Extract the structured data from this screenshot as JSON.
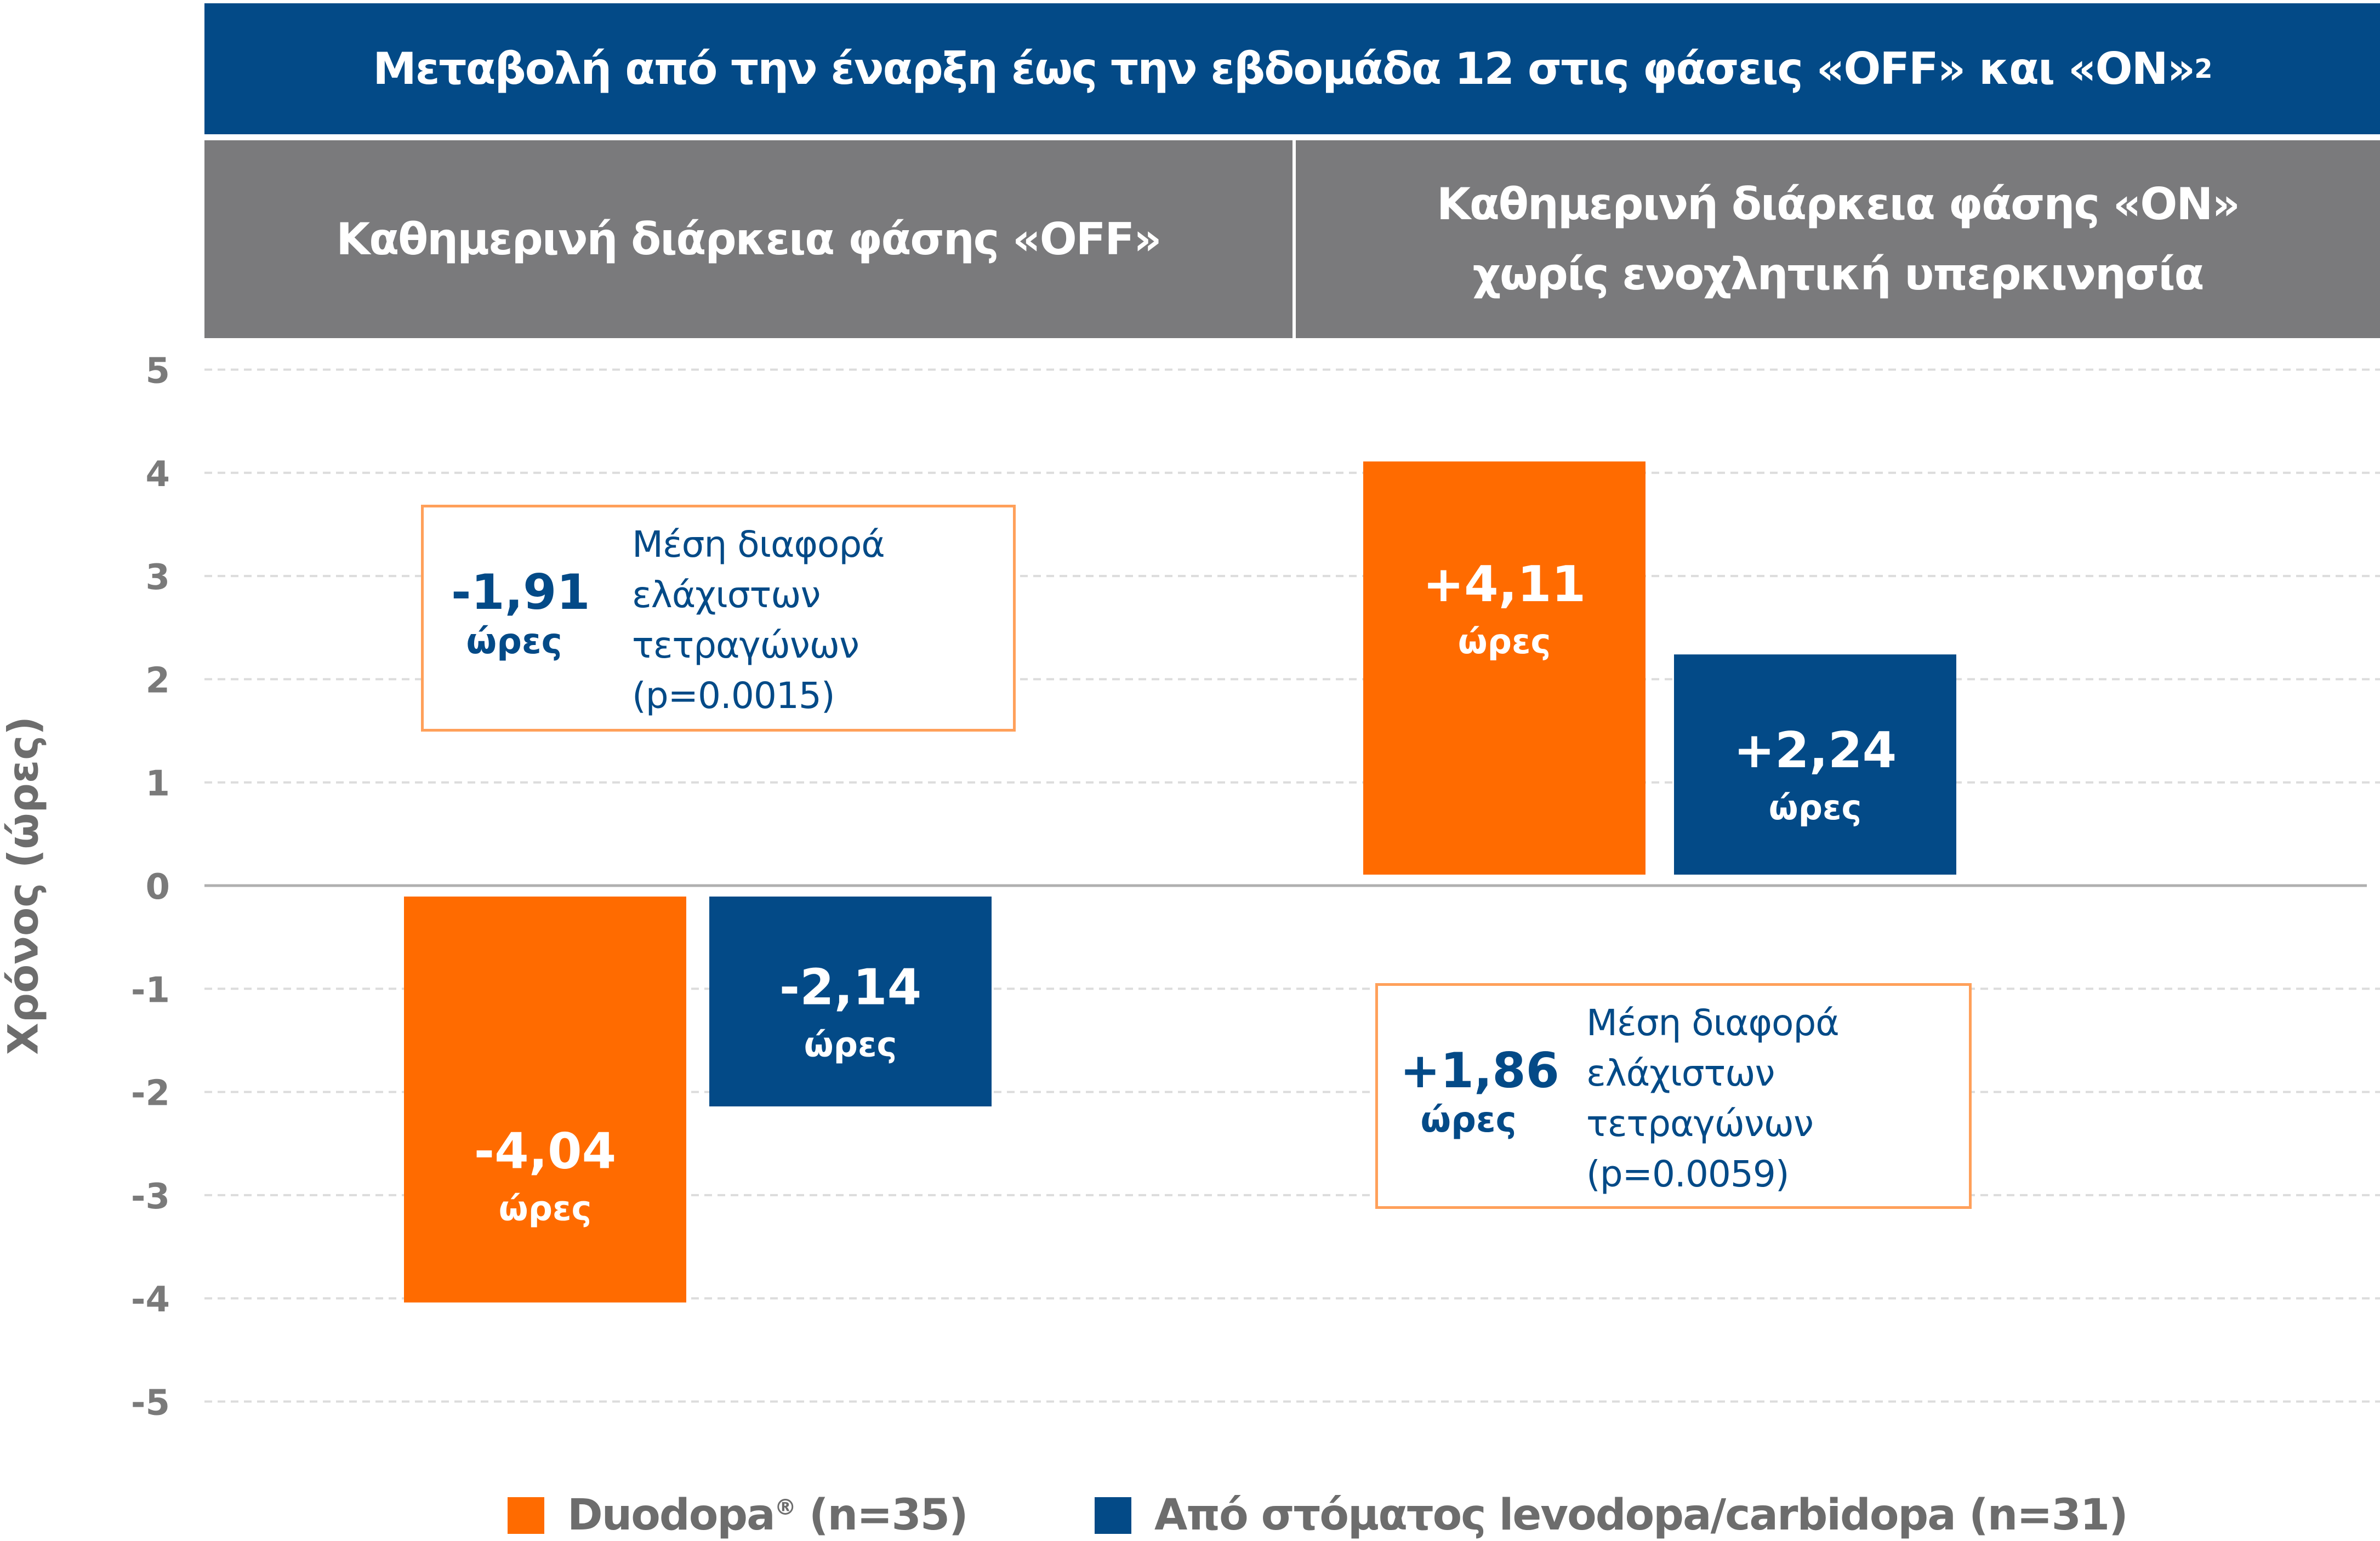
{
  "header": {
    "title": "Μεταβολή από την έναρξη έως την εβδομάδα 12 στις φάσεις «OFF» και «ON»",
    "title_superscript": "2"
  },
  "panels": [
    {
      "title": "Καθημερινή διάρκεια φάσης «OFF»"
    },
    {
      "title": "Καθημερινή διάρκεια φάσης «ON»\nχωρίς ενοχλητική υπερκινησία"
    }
  ],
  "annotations": [
    {
      "value": "-1,91",
      "unit": "ώρες",
      "line1": "Μέση διαφορά",
      "line2": "ελάχιστων",
      "line3": "τετραγώνων",
      "line4": "(p=0.0015)"
    },
    {
      "value": "+1,86",
      "unit": "ώρες",
      "line1": "Μέση διαφορά",
      "line2": "ελάχιστων",
      "line3": "τετραγώνων",
      "line4": "(p=0.0059)"
    }
  ],
  "legend": [
    {
      "label": "Duodopa",
      "superscript": "®",
      "suffix": " (n=35)",
      "color": "#ff6b00"
    },
    {
      "label": "Από στόματος levodopa/carbidopa (n=31)",
      "color": "#034a87"
    }
  ],
  "chart_data": {
    "type": "bar",
    "categories": [
      "Καθημερινή διάρκεια φάσης «OFF»",
      "Καθημερινή διάρκεια φάσης «ON» χωρίς ενοχλητική υπερκινησία"
    ],
    "series": [
      {
        "name": "Duodopa® (n=35)",
        "color": "#ff6b00",
        "values": [
          -4.04,
          4.11
        ],
        "labels": [
          "-4,04",
          "+4,11"
        ]
      },
      {
        "name": "Από στόματος levodopa/carbidopa (n=31)",
        "color": "#034a87",
        "values": [
          -2.14,
          2.24
        ],
        "labels": [
          "-2,14",
          "+2,24"
        ]
      }
    ],
    "value_unit_label": "ώρες",
    "ylabel": "Χρόνος (ώρες)",
    "ylim": [
      -5,
      5
    ],
    "yticks": [
      5,
      4,
      3,
      2,
      1,
      0,
      -1,
      -2,
      -3,
      -4,
      -5
    ],
    "grid": true,
    "legend_position": "bottom"
  }
}
